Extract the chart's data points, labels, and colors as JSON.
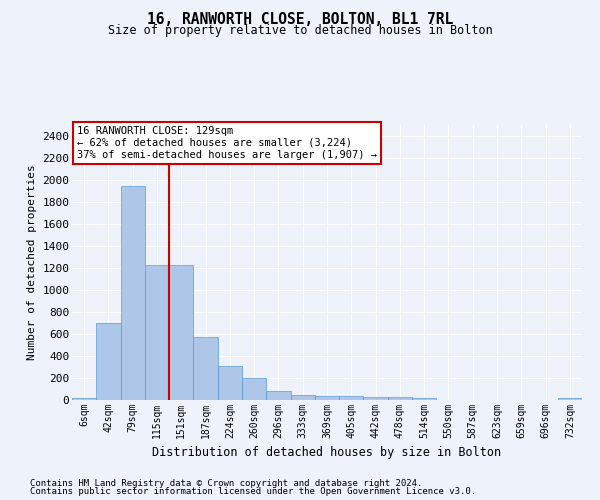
{
  "title": "16, RANWORTH CLOSE, BOLTON, BL1 7RL",
  "subtitle": "Size of property relative to detached houses in Bolton",
  "xlabel": "Distribution of detached houses by size in Bolton",
  "ylabel": "Number of detached properties",
  "bar_color": "#aec6e8",
  "bar_edgecolor": "#5b9bd5",
  "categories": [
    "6sqm",
    "42sqm",
    "79sqm",
    "115sqm",
    "151sqm",
    "187sqm",
    "224sqm",
    "260sqm",
    "296sqm",
    "333sqm",
    "369sqm",
    "405sqm",
    "442sqm",
    "478sqm",
    "514sqm",
    "550sqm",
    "587sqm",
    "623sqm",
    "659sqm",
    "696sqm",
    "732sqm"
  ],
  "values": [
    15,
    700,
    1950,
    1225,
    1225,
    575,
    305,
    200,
    80,
    45,
    35,
    35,
    25,
    25,
    20,
    0,
    0,
    0,
    0,
    0,
    20
  ],
  "ylim": [
    0,
    2500
  ],
  "yticks": [
    0,
    200,
    400,
    600,
    800,
    1000,
    1200,
    1400,
    1600,
    1800,
    2000,
    2200,
    2400
  ],
  "vline_x": 3.5,
  "annotation_title": "16 RANWORTH CLOSE: 129sqm",
  "annotation_line1": "← 62% of detached houses are smaller (3,224)",
  "annotation_line2": "37% of semi-detached houses are larger (1,907) →",
  "annotation_box_color": "#ffffff",
  "annotation_box_edgecolor": "#cc0000",
  "vline_color": "#cc0000",
  "footer1": "Contains HM Land Registry data © Crown copyright and database right 2024.",
  "footer2": "Contains public sector information licensed under the Open Government Licence v3.0.",
  "background_color": "#edf2fb",
  "grid_color": "#ffffff"
}
